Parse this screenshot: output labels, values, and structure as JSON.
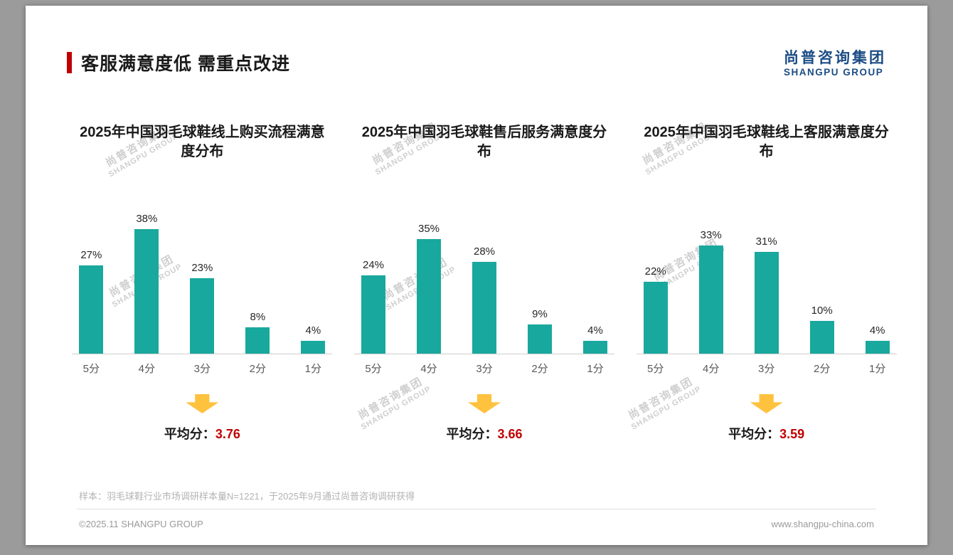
{
  "page": {
    "title": "客服满意度低 需重点改进",
    "logo_cn": "尚普咨询集团",
    "logo_en": "SHANGPU GROUP",
    "watermark_cn": "尚普咨询集团",
    "watermark_en": "SHANGPU GROUP",
    "footnote": "样本：羽毛球鞋行业市场调研样本量N=1221，于2025年9月通过尚普咨询调研获得",
    "footer_left": "©2025.11 SHANGPU GROUP",
    "footer_right": "www.shangpu-china.com"
  },
  "colors": {
    "bar": "#19a89d",
    "accent_red": "#c00000",
    "average_red": "#c00000",
    "arrow_yellow": "#ffc23e",
    "logo_blue": "#1c4c85"
  },
  "chart_data": [
    {
      "type": "bar",
      "title": "2025年中国羽毛球鞋线上购买流程满意度分布",
      "categories": [
        "5分",
        "4分",
        "3分",
        "2分",
        "1分"
      ],
      "values": [
        27,
        38,
        23,
        8,
        4
      ],
      "value_suffix": "%",
      "ylim": [
        0,
        40
      ],
      "grid": false,
      "legend": "none",
      "average_label": "平均分：",
      "average": "3.76"
    },
    {
      "type": "bar",
      "title": "2025年中国羽毛球鞋售后服务满意度分布",
      "categories": [
        "5分",
        "4分",
        "3分",
        "2分",
        "1分"
      ],
      "values": [
        24,
        35,
        28,
        9,
        4
      ],
      "value_suffix": "%",
      "ylim": [
        0,
        40
      ],
      "grid": false,
      "legend": "none",
      "average_label": "平均分：",
      "average": "3.66"
    },
    {
      "type": "bar",
      "title": "2025年中国羽毛球鞋线上客服满意度分布",
      "categories": [
        "5分",
        "4分",
        "3分",
        "2分",
        "1分"
      ],
      "values": [
        22,
        33,
        31,
        10,
        4
      ],
      "value_suffix": "%",
      "ylim": [
        0,
        40
      ],
      "grid": false,
      "legend": "none",
      "average_label": "平均分：",
      "average": "3.59"
    }
  ]
}
